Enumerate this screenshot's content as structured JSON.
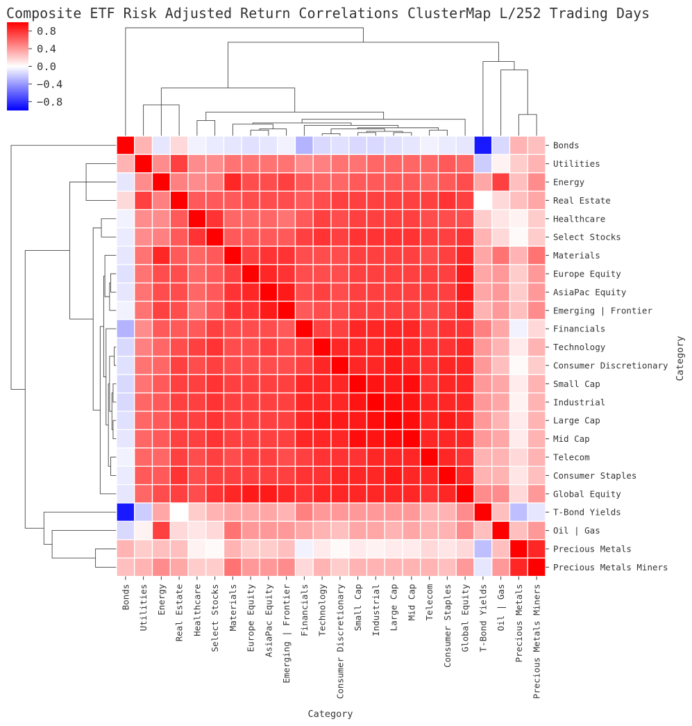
{
  "chart_data": {
    "type": "heatmap",
    "title": "Composite ETF Risk Adjusted Return Correlations ClusterMap L/252 Trading Days",
    "xlabel": "Category",
    "ylabel": "Category",
    "categories": [
      "Bonds",
      "Utilities",
      "Energy",
      "Real Estate",
      "Healthcare",
      "Select Stocks",
      "Materials",
      "Europe Equity",
      "AsiaPac Equity",
      "Emerging | Frontier",
      "Financials",
      "Technology",
      "Consumer Discretionary",
      "Small Cap",
      "Industrial",
      "Large Cap",
      "Mid Cap",
      "Telecom",
      "Consumer Staples",
      "Global Equity",
      "T-Bond Yields",
      "Oil | Gas",
      "Precious Metals",
      "Precious Metals Miners"
    ],
    "colormap": "bwr",
    "vmin": -1.0,
    "vmax": 1.0,
    "colorbar_ticks": [
      0.8,
      0.4,
      0.0,
      -0.4,
      -0.8
    ],
    "colorbar_tick_labels": [
      "0.8",
      "0.4",
      "0.0",
      "−0.4",
      "−0.8"
    ],
    "matrix": [
      [
        1.0,
        0.3,
        -0.1,
        0.15,
        -0.05,
        -0.08,
        -0.1,
        -0.12,
        -0.1,
        -0.05,
        -0.3,
        -0.15,
        -0.12,
        -0.15,
        -0.15,
        -0.12,
        -0.1,
        -0.05,
        -0.08,
        -0.1,
        -0.9,
        -0.15,
        0.3,
        0.25
      ],
      [
        0.3,
        1.0,
        0.45,
        0.75,
        0.45,
        0.45,
        0.55,
        0.55,
        0.55,
        0.55,
        0.45,
        0.5,
        0.55,
        0.55,
        0.6,
        0.6,
        0.6,
        0.6,
        0.65,
        0.6,
        -0.2,
        0.05,
        0.2,
        0.3
      ],
      [
        -0.1,
        0.45,
        1.0,
        0.5,
        0.45,
        0.5,
        0.85,
        0.7,
        0.7,
        0.75,
        0.65,
        0.6,
        0.6,
        0.65,
        0.65,
        0.65,
        0.65,
        0.6,
        0.65,
        0.7,
        0.35,
        0.75,
        0.25,
        0.45
      ],
      [
        0.15,
        0.75,
        0.5,
        1.0,
        0.65,
        0.65,
        0.65,
        0.7,
        0.7,
        0.7,
        0.65,
        0.7,
        0.75,
        0.75,
        0.75,
        0.75,
        0.75,
        0.75,
        0.8,
        0.75,
        0.0,
        0.15,
        0.25,
        0.35
      ],
      [
        -0.05,
        0.45,
        0.45,
        0.65,
        1.0,
        0.8,
        0.6,
        0.6,
        0.6,
        0.55,
        0.65,
        0.75,
        0.7,
        0.75,
        0.75,
        0.75,
        0.75,
        0.7,
        0.7,
        0.7,
        0.2,
        0.1,
        0.05,
        0.2
      ],
      [
        -0.08,
        0.45,
        0.5,
        0.65,
        0.8,
        1.0,
        0.65,
        0.65,
        0.65,
        0.65,
        0.75,
        0.8,
        0.75,
        0.8,
        0.8,
        0.8,
        0.8,
        0.75,
        0.75,
        0.8,
        0.3,
        0.15,
        0.02,
        0.2
      ],
      [
        -0.1,
        0.55,
        0.85,
        0.65,
        0.6,
        0.65,
        1.0,
        0.75,
        0.8,
        0.8,
        0.7,
        0.7,
        0.7,
        0.75,
        0.75,
        0.75,
        0.75,
        0.7,
        0.75,
        0.85,
        0.35,
        0.55,
        0.3,
        0.55
      ],
      [
        -0.12,
        0.55,
        0.7,
        0.7,
        0.6,
        0.65,
        0.75,
        1.0,
        0.85,
        0.8,
        0.7,
        0.7,
        0.7,
        0.75,
        0.75,
        0.75,
        0.75,
        0.75,
        0.75,
        0.9,
        0.35,
        0.4,
        0.2,
        0.4
      ],
      [
        -0.1,
        0.55,
        0.7,
        0.7,
        0.6,
        0.65,
        0.8,
        0.85,
        1.0,
        0.9,
        0.7,
        0.75,
        0.7,
        0.75,
        0.75,
        0.75,
        0.75,
        0.75,
        0.75,
        0.9,
        0.35,
        0.4,
        0.2,
        0.4
      ],
      [
        -0.05,
        0.55,
        0.75,
        0.7,
        0.55,
        0.65,
        0.8,
        0.8,
        0.9,
        1.0,
        0.65,
        0.7,
        0.7,
        0.75,
        0.75,
        0.75,
        0.75,
        0.7,
        0.75,
        0.85,
        0.3,
        0.4,
        0.25,
        0.45
      ],
      [
        -0.3,
        0.45,
        0.65,
        0.65,
        0.65,
        0.75,
        0.7,
        0.7,
        0.7,
        0.65,
        1.0,
        0.75,
        0.75,
        0.85,
        0.85,
        0.85,
        0.85,
        0.75,
        0.8,
        0.8,
        0.5,
        0.35,
        -0.05,
        0.15
      ],
      [
        -0.15,
        0.5,
        0.6,
        0.7,
        0.75,
        0.8,
        0.7,
        0.7,
        0.75,
        0.7,
        0.75,
        1.0,
        0.85,
        0.85,
        0.85,
        0.9,
        0.85,
        0.8,
        0.8,
        0.85,
        0.4,
        0.3,
        0.08,
        0.3
      ],
      [
        -0.12,
        0.55,
        0.6,
        0.75,
        0.7,
        0.75,
        0.7,
        0.7,
        0.7,
        0.7,
        0.75,
        0.85,
        1.0,
        0.85,
        0.85,
        0.9,
        0.85,
        0.8,
        0.85,
        0.85,
        0.4,
        0.25,
        0.02,
        0.2
      ],
      [
        -0.15,
        0.55,
        0.65,
        0.75,
        0.75,
        0.8,
        0.75,
        0.75,
        0.75,
        0.75,
        0.85,
        0.85,
        0.85,
        1.0,
        0.92,
        0.9,
        0.95,
        0.8,
        0.85,
        0.85,
        0.4,
        0.35,
        0.08,
        0.3
      ],
      [
        -0.15,
        0.6,
        0.65,
        0.75,
        0.75,
        0.8,
        0.75,
        0.75,
        0.75,
        0.75,
        0.85,
        0.85,
        0.85,
        0.92,
        1.0,
        0.95,
        0.92,
        0.85,
        0.85,
        0.85,
        0.4,
        0.35,
        0.05,
        0.3
      ],
      [
        -0.12,
        0.6,
        0.65,
        0.75,
        0.75,
        0.8,
        0.75,
        0.75,
        0.75,
        0.75,
        0.85,
        0.9,
        0.9,
        0.9,
        0.95,
        1.0,
        0.95,
        0.85,
        0.9,
        0.85,
        0.4,
        0.3,
        0.08,
        0.3
      ],
      [
        -0.1,
        0.6,
        0.65,
        0.75,
        0.75,
        0.8,
        0.75,
        0.75,
        0.75,
        0.75,
        0.85,
        0.85,
        0.85,
        0.95,
        0.92,
        0.95,
        1.0,
        0.85,
        0.85,
        0.85,
        0.4,
        0.35,
        0.08,
        0.3
      ],
      [
        -0.05,
        0.6,
        0.6,
        0.75,
        0.7,
        0.75,
        0.7,
        0.75,
        0.75,
        0.7,
        0.75,
        0.8,
        0.8,
        0.8,
        0.85,
        0.85,
        0.85,
        1.0,
        0.85,
        0.8,
        0.3,
        0.3,
        0.15,
        0.3
      ],
      [
        -0.08,
        0.65,
        0.65,
        0.8,
        0.7,
        0.75,
        0.75,
        0.75,
        0.75,
        0.75,
        0.8,
        0.8,
        0.85,
        0.85,
        0.85,
        0.9,
        0.85,
        0.85,
        1.0,
        0.85,
        0.3,
        0.3,
        0.1,
        0.25
      ],
      [
        -0.1,
        0.6,
        0.7,
        0.75,
        0.7,
        0.8,
        0.85,
        0.9,
        0.9,
        0.85,
        0.8,
        0.85,
        0.85,
        0.85,
        0.85,
        0.85,
        0.85,
        0.8,
        0.85,
        1.0,
        0.45,
        0.45,
        0.15,
        0.4
      ],
      [
        -0.9,
        -0.2,
        0.35,
        0.0,
        0.2,
        0.3,
        0.35,
        0.35,
        0.35,
        0.3,
        0.5,
        0.4,
        0.4,
        0.4,
        0.4,
        0.4,
        0.4,
        0.3,
        0.3,
        0.45,
        1.0,
        0.25,
        -0.25,
        -0.1
      ],
      [
        -0.15,
        0.05,
        0.75,
        0.15,
        0.1,
        0.15,
        0.55,
        0.4,
        0.4,
        0.4,
        0.35,
        0.3,
        0.25,
        0.35,
        0.35,
        0.3,
        0.35,
        0.3,
        0.3,
        0.45,
        0.25,
        1.0,
        0.25,
        0.4
      ],
      [
        0.3,
        0.2,
        0.25,
        0.25,
        0.05,
        0.02,
        0.3,
        0.2,
        0.2,
        0.25,
        -0.05,
        0.08,
        0.02,
        0.08,
        0.05,
        0.08,
        0.08,
        0.15,
        0.1,
        0.15,
        -0.25,
        0.25,
        1.0,
        0.85
      ],
      [
        0.25,
        0.3,
        0.45,
        0.35,
        0.2,
        0.2,
        0.55,
        0.4,
        0.4,
        0.45,
        0.15,
        0.3,
        0.2,
        0.3,
        0.3,
        0.3,
        0.3,
        0.3,
        0.25,
        0.4,
        -0.1,
        0.4,
        0.85,
        1.0
      ]
    ],
    "dendrogram": {
      "leaf_order": [
        0,
        1,
        2,
        3,
        4,
        5,
        6,
        7,
        8,
        9,
        10,
        11,
        12,
        13,
        14,
        15,
        16,
        17,
        18,
        19,
        20,
        21,
        22,
        23
      ],
      "merges": [
        [
          11,
          12,
          0.02
        ],
        [
          13,
          14,
          0.03
        ],
        [
          15,
          16,
          0.03
        ],
        [
          25,
          26,
          0.04
        ],
        [
          24,
          27,
          0.06
        ],
        [
          7,
          8,
          0.05
        ],
        [
          29,
          9,
          0.06
        ],
        [
          17,
          18,
          0.05
        ],
        [
          28,
          31,
          0.07
        ],
        [
          10,
          32,
          0.09
        ],
        [
          30,
          6,
          0.1
        ],
        [
          33,
          34,
          0.11
        ],
        [
          4,
          5,
          0.13
        ],
        [
          35,
          19,
          0.14
        ],
        [
          36,
          37,
          0.2
        ],
        [
          1,
          3,
          0.26
        ],
        [
          2,
          39,
          0.3
        ],
        [
          22,
          23,
          0.18
        ],
        [
          40,
          38,
          0.4
        ],
        [
          21,
          41,
          0.55
        ],
        [
          20,
          43,
          0.62
        ],
        [
          42,
          44,
          0.78
        ],
        [
          0,
          45,
          0.9
        ]
      ]
    }
  }
}
